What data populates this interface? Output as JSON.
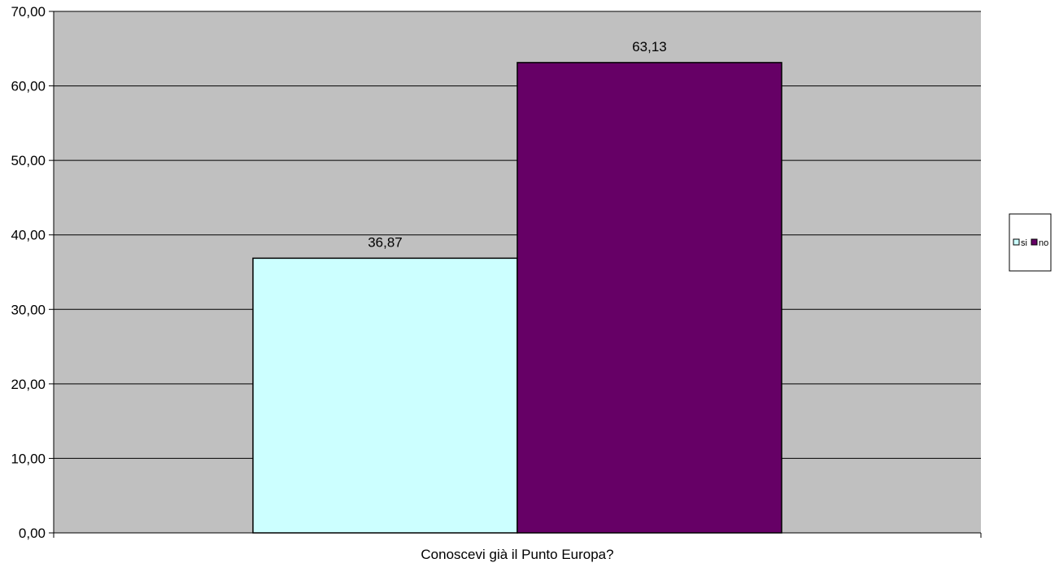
{
  "chart_data": {
    "type": "bar",
    "categories": [
      "Conoscevi già il Punto Europa?"
    ],
    "series": [
      {
        "name": "si",
        "values": [
          36.87
        ],
        "color": "#CCFFFF"
      },
      {
        "name": "no",
        "values": [
          63.13
        ],
        "color": "#660066"
      }
    ],
    "data_labels": [
      "36,87",
      "63,13"
    ],
    "y_tick_labels": [
      "0,00",
      "10,00",
      "20,00",
      "30,00",
      "40,00",
      "50,00",
      "60,00",
      "70,00"
    ],
    "y_ticks": [
      0,
      10,
      20,
      30,
      40,
      50,
      60,
      70
    ],
    "ylim": [
      0,
      70
    ],
    "xlabel": "Conoscevi già il Punto Europa?",
    "ylabel": "",
    "title": "",
    "grid": true,
    "legend_position": "right",
    "plot_background": "#C0C0C0"
  }
}
